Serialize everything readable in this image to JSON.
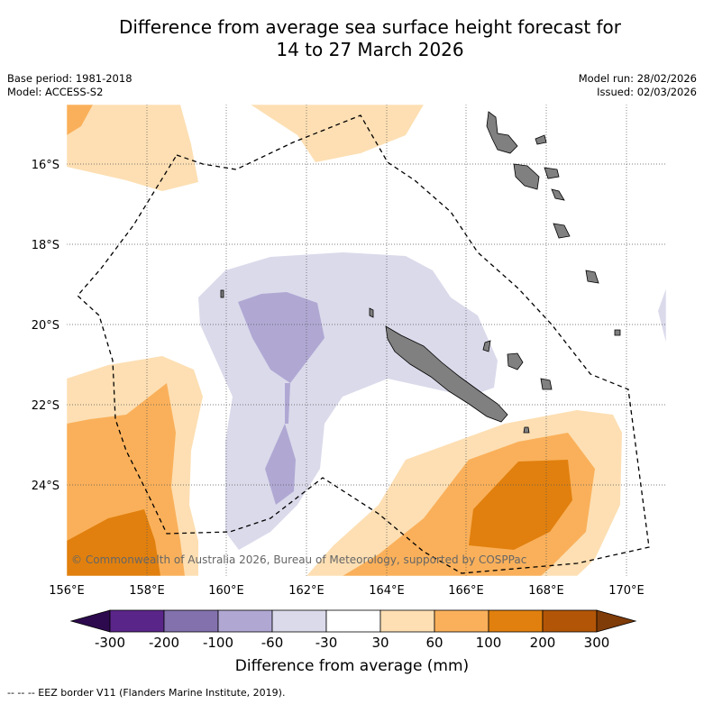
{
  "title_line1": "Difference from average sea surface height forecast for",
  "title_line2": "14 to 27 March 2026",
  "meta": {
    "base_period": "Base period: 1981-2018",
    "model": "Model: ACCESS-S2",
    "model_run": "Model run: 28/02/2026",
    "issued": "Issued: 02/03/2026"
  },
  "lat_labels": [
    "16°S",
    "18°S",
    "20°S",
    "22°S",
    "24°S"
  ],
  "lon_labels": [
    "156°E",
    "158°E",
    "160°E",
    "162°E",
    "164°E",
    "166°E",
    "168°E",
    "170°E"
  ],
  "copyright": "© Commonwealth of Australia 2026, Bureau of Meteorology, supported by COSPPac",
  "colorbar": {
    "ticks": [
      "-300",
      "-200",
      "-100",
      "-60",
      "-30",
      "30",
      "60",
      "100",
      "200",
      "300"
    ],
    "colors": [
      "#5a2589",
      "#8371ad",
      "#b0a8d3",
      "#dadaeb",
      "#ffffff",
      "#fddfb3",
      "#fab05a",
      "#e1800e",
      "#b25507"
    ],
    "under_color": "#2d0a4e",
    "over_color": "#7f3b08",
    "label": "Difference from average (mm)"
  },
  "icons": {
    "land": "island-shape",
    "eez": "dashed-line"
  },
  "footnote": "--  --  -- EEZ border V11 (Flanders Marine Institute, 2019)."
}
